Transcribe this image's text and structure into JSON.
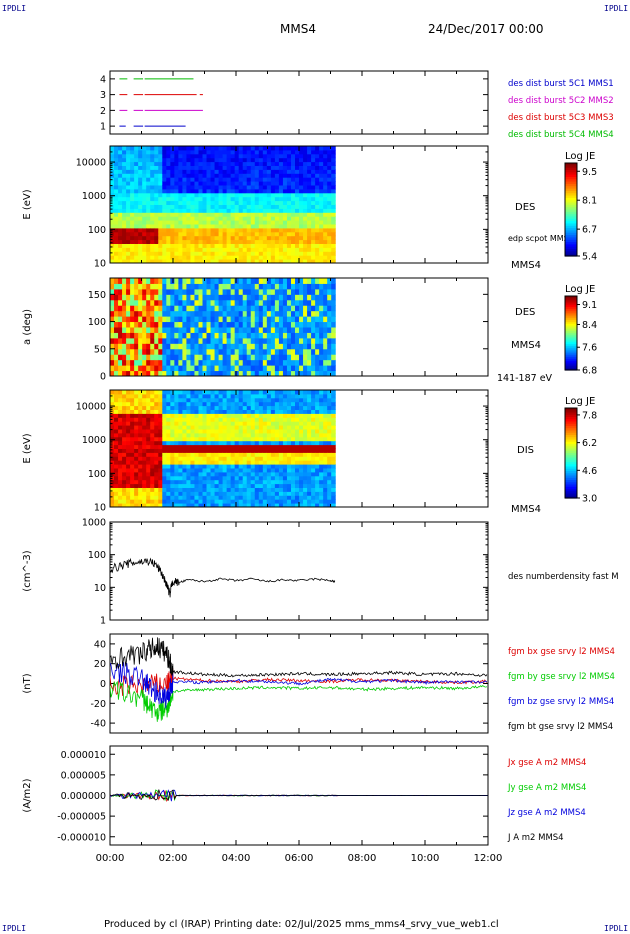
{
  "header": {
    "corner_left_top": "IPDLI",
    "corner_right_top": "IPDLI",
    "corner_left_bottom": "IPDLI",
    "corner_right_bottom": "IPDLI",
    "spacecraft": "MMS4",
    "date": "24/Dec/2017 00:00"
  },
  "footer": {
    "text": "Produced by cl (IRAP)   Printing date: 02/Jul/2025   mms_mms4_srvy_vue_web1.cl"
  },
  "colors": {
    "mms1": "#0000cc",
    "mms2": "#cc00cc",
    "mms3": "#dd0000",
    "mms4": "#00bb00",
    "bx": "#dd0000",
    "by": "#00cc00",
    "bz": "#0000dd",
    "bt": "#000000"
  },
  "chart_data": [
    {
      "id": "burst",
      "type": "line",
      "ylim": [
        0.5,
        4.5
      ],
      "yticks": [
        "1",
        "2",
        "3",
        "4"
      ],
      "series": [
        {
          "name": "des dist burst 5C1 MMS1",
          "level": 1,
          "color": "mms1",
          "segments": [
            [
              0.3,
              0.5
            ],
            [
              0.75,
              1.05
            ],
            [
              1.1,
              2.4
            ]
          ]
        },
        {
          "name": "des dist burst 5C2 MMS2",
          "level": 2,
          "color": "mms2",
          "segments": [
            [
              0.3,
              0.55
            ],
            [
              0.75,
              1.05
            ],
            [
              1.1,
              2.95
            ]
          ]
        },
        {
          "name": "des dist burst 5C3 MMS3",
          "level": 3,
          "color": "mms3",
          "segments": [
            [
              0.3,
              0.55
            ],
            [
              0.75,
              1.05
            ],
            [
              1.1,
              2.75
            ],
            [
              2.85,
              2.95
            ]
          ]
        },
        {
          "name": "des dist burst 5C4 MMS4",
          "level": 4,
          "color": "mms4",
          "segments": [
            [
              0.3,
              0.55
            ],
            [
              0.75,
              1.05
            ],
            [
              1.1,
              2.65
            ]
          ]
        }
      ]
    },
    {
      "id": "des-energy",
      "type": "heatmap",
      "ylabel": "E (eV)",
      "yscale": "log",
      "ylim": [
        10,
        30000
      ],
      "yticks": [
        "10",
        "100",
        "1000",
        "10000"
      ],
      "data_xlim": [
        0,
        7.15
      ],
      "right_labels": [
        "DES",
        "edp scpot MMS4",
        "MMS4"
      ],
      "colorbar": {
        "title": "Log JE",
        "ticks": [
          "9.5",
          "8.1",
          "6.7",
          "5.4"
        ],
        "range": [
          5.4,
          9.9
        ]
      }
    },
    {
      "id": "des-pitch",
      "type": "heatmap",
      "ylabel": "a (deg)",
      "ylim": [
        0,
        180
      ],
      "yticks": [
        "0",
        "50",
        "100",
        "150"
      ],
      "data_xlim": [
        0,
        7.15
      ],
      "right_labels": [
        "DES",
        "MMS4",
        "141-187 eV"
      ],
      "colorbar": {
        "title": "Log JE",
        "ticks": [
          "9.1",
          "8.4",
          "7.6",
          "6.8"
        ],
        "range": [
          6.8,
          9.4
        ]
      }
    },
    {
      "id": "dis-energy",
      "type": "heatmap",
      "ylabel": "E (eV)",
      "yscale": "log",
      "ylim": [
        10,
        30000
      ],
      "yticks": [
        "10",
        "100",
        "1000",
        "10000"
      ],
      "data_xlim": [
        0,
        7.15
      ],
      "right_labels": [
        "DIS",
        "MMS4"
      ],
      "colorbar": {
        "title": "Log JE",
        "ticks": [
          "7.8",
          "6.2",
          "4.6",
          "3.0"
        ],
        "range": [
          3.0,
          8.2
        ]
      }
    },
    {
      "id": "density",
      "type": "line",
      "ylabel": "(cm^-3)",
      "yscale": "log",
      "ylim": [
        1,
        1000
      ],
      "yticks": [
        "1",
        "10",
        "100",
        "1000"
      ],
      "series": [
        {
          "name": "des numberdensity fast M",
          "color": "bt",
          "x": [
            0.0,
            0.3,
            0.6,
            0.9,
            1.2,
            1.4,
            1.55,
            1.7,
            1.8,
            1.9,
            2.0,
            2.2,
            2.5,
            3.0,
            3.5,
            4.0,
            4.5,
            5.0,
            5.5,
            6.0,
            6.5,
            7.0,
            7.15
          ],
          "y": [
            38,
            45,
            55,
            60,
            65,
            55,
            38,
            20,
            12,
            6,
            16,
            14,
            17,
            15,
            18,
            16,
            18,
            15,
            17,
            16,
            18,
            16,
            15
          ]
        }
      ]
    },
    {
      "id": "fgm",
      "type": "line",
      "ylabel": "(nT)",
      "ylim": [
        -50,
        50
      ],
      "yticks": [
        "-40",
        "-20",
        "0",
        "20",
        "40"
      ],
      "series": [
        {
          "name": "fgm bx gse srvy l2 MMS4",
          "color": "bx",
          "x": [
            0,
            1,
            1.8,
            2,
            3,
            4,
            5,
            6,
            7,
            8,
            9,
            10,
            11,
            12
          ],
          "y": [
            -3,
            -2,
            0,
            5,
            3,
            2,
            4,
            3,
            2,
            4,
            3,
            2,
            1,
            2
          ]
        },
        {
          "name": "fgm by gse srvy l2 MMS4",
          "color": "by",
          "x": [
            0,
            1,
            1.5,
            1.8,
            2,
            3,
            4,
            5,
            6,
            7,
            8,
            9,
            10,
            11,
            12
          ],
          "y": [
            -5,
            -15,
            -30,
            -25,
            -8,
            -6,
            -5,
            -4,
            -5,
            -4,
            -6,
            -5,
            -4,
            -5,
            -3
          ]
        },
        {
          "name": "fgm bz gse srvy l2 MMS4",
          "color": "bz",
          "x": [
            0,
            1,
            1.5,
            1.8,
            2,
            3,
            4,
            5,
            6,
            7,
            8,
            9,
            10,
            11,
            12
          ],
          "y": [
            15,
            5,
            -10,
            -15,
            2,
            1,
            3,
            2,
            0,
            4,
            2,
            3,
            1,
            2,
            1
          ]
        },
        {
          "name": "fgm bt gse srvy l2 MMS4",
          "color": "bt",
          "x": [
            0,
            1,
            1.5,
            1.8,
            2,
            3,
            4,
            5,
            6,
            7,
            8,
            9,
            10,
            11,
            12
          ],
          "y": [
            25,
            30,
            38,
            30,
            12,
            9,
            8,
            9,
            10,
            9,
            10,
            11,
            9,
            10,
            8
          ]
        }
      ]
    },
    {
      "id": "current",
      "type": "line",
      "ylabel": "(A/m2)",
      "ylim": [
        -1.2e-05,
        1.2e-05
      ],
      "yticks": [
        "-0.000010",
        "-0.000005",
        "0.000000",
        "0.000005",
        "0.000010"
      ],
      "xlim": [
        0,
        12
      ],
      "xticks": [
        "00:00",
        "02:00",
        "04:00",
        "06:00",
        "08:00",
        "10:00",
        "12:00"
      ],
      "series": [
        {
          "name": "Jx gse A m2 MMS4",
          "color": "bx"
        },
        {
          "name": "Jy gse A m2 MMS4",
          "color": "by"
        },
        {
          "name": "Jz gse A m2 MMS4",
          "color": "bz"
        },
        {
          "name": "J A m2 MMS4",
          "color": "bt"
        }
      ]
    }
  ]
}
